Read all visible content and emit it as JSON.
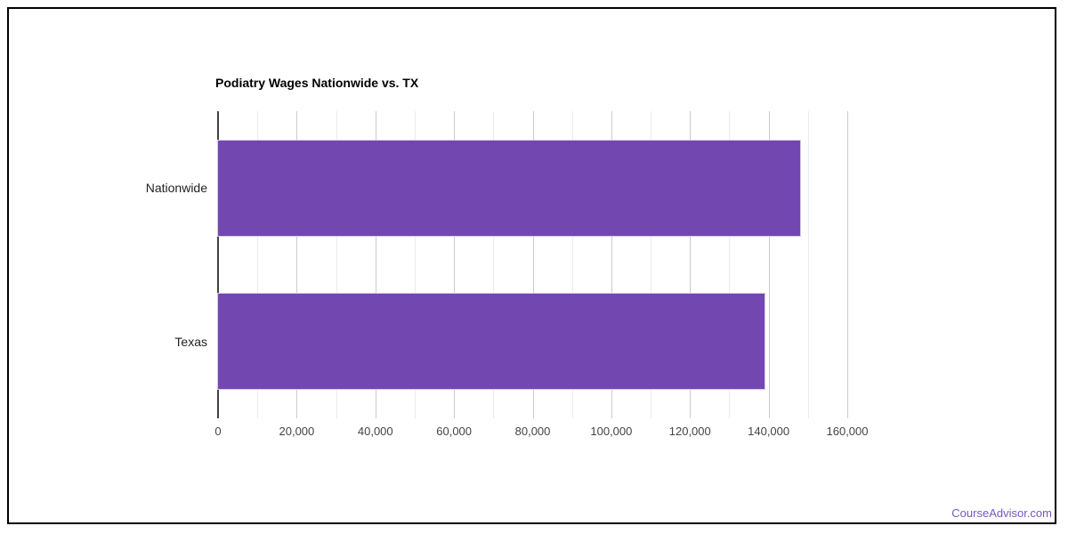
{
  "chart_data": {
    "type": "bar",
    "orientation": "horizontal",
    "title": "Podiatry Wages Nationwide vs. TX",
    "categories": [
      "Nationwide",
      "Texas"
    ],
    "values": [
      148000,
      139000
    ],
    "xlabel": "",
    "ylabel": "",
    "xlim": [
      0,
      160000
    ],
    "x_ticks": [
      0,
      20000,
      40000,
      60000,
      80000,
      100000,
      120000,
      140000,
      160000
    ],
    "x_tick_labels": [
      "0",
      "20,000",
      "40,000",
      "60,000",
      "80,000",
      "100,000",
      "120,000",
      "140,000",
      "160,000"
    ],
    "minor_grid_step": 10000,
    "major_grid_step": 20000,
    "grid": true,
    "legend": "none",
    "colors": {
      "bar": "#7248b0",
      "bar_stroke": "#d9c9ee",
      "major_gridline": "#cccccc",
      "minor_gridline": "#ebebeb",
      "axis_line": "#424242",
      "tick_text": "#444444",
      "category_text": "#222222",
      "title_text": "#000000"
    }
  },
  "footer": {
    "link_label": "CourseAdvisor.com",
    "link_color": "#7757c0"
  }
}
